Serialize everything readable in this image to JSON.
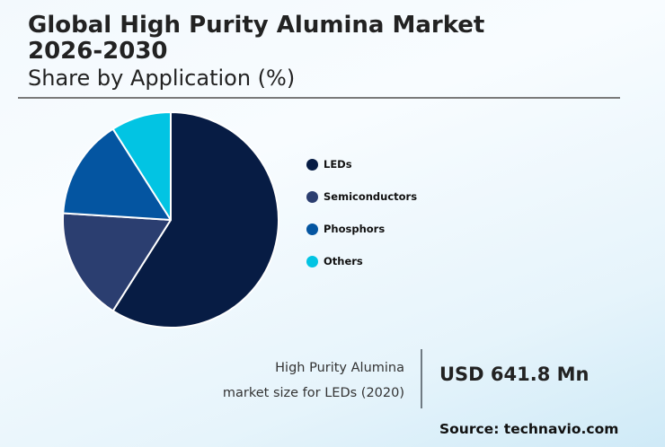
{
  "header": {
    "title": "Global High Purity Alumina Market\n2026-2030",
    "subtitle": "Share by Application (%)"
  },
  "legend": [
    {
      "label": "LEDs",
      "color": "#071c44"
    },
    {
      "label": "Semiconductors",
      "color": "#2b3e70"
    },
    {
      "label": "Phosphors",
      "color": "#0455a1"
    },
    {
      "label": "Others",
      "color": "#02c4e3"
    }
  ],
  "kpi": {
    "label_line1": "High Purity Alumina",
    "label_line2": "market size for LEDs (2020)",
    "value": "USD 641.8 Mn"
  },
  "source": "Source: technavio.com",
  "chart_data": {
    "type": "pie",
    "title": "Global High Purity Alumina Market 2026-2030",
    "subtitle": "Share by Application (%)",
    "categories": [
      "LEDs",
      "Semiconductors",
      "Phosphors",
      "Others"
    ],
    "values": [
      59,
      17,
      15,
      9
    ],
    "colors": [
      "#071c44",
      "#2b3e70",
      "#0455a1",
      "#02c4e3"
    ],
    "start_angle": "12 o'clock, clockwise",
    "legend_position": "right",
    "data_labels": false,
    "annotation": "High Purity Alumina market size for LEDs (2020): USD 641.8 Mn"
  }
}
